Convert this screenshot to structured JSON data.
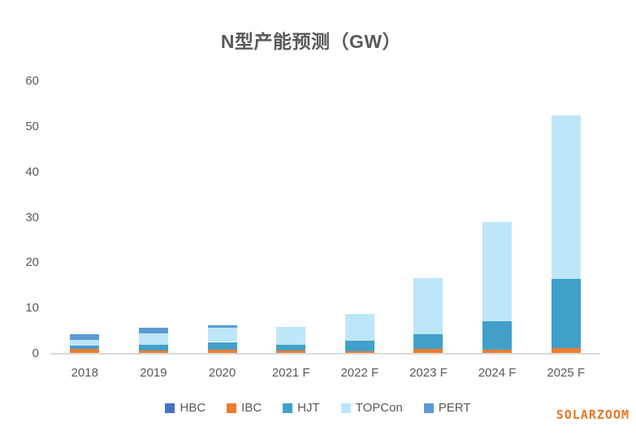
{
  "chart_data": {
    "type": "bar",
    "stacked": true,
    "title": "N型产能预测（GW）",
    "xlabel": "",
    "ylabel": "",
    "ylim": [
      0,
      60
    ],
    "yticks": [
      0,
      10,
      20,
      30,
      40,
      50,
      60
    ],
    "grid": false,
    "legend_position": "bottom",
    "categories": [
      "2018",
      "2019",
      "2020",
      "2021 F",
      "2022 F",
      "2023 F",
      "2024 F",
      "2025 F"
    ],
    "series": [
      {
        "name": "HBC",
        "color": "#4472C4",
        "values": [
          0,
          0,
          0,
          0,
          0,
          0,
          0,
          0
        ]
      },
      {
        "name": "IBC",
        "color": "#ED7D31",
        "values": [
          1.0,
          0.8,
          0.9,
          0.7,
          0.5,
          1.0,
          0.9,
          1.2
        ]
      },
      {
        "name": "HJT",
        "color": "#41A0C9",
        "values": [
          0.8,
          1.2,
          1.7,
          1.3,
          2.3,
          3.3,
          6.2,
          15.2
        ]
      },
      {
        "name": "TOPCon",
        "color": "#BDE7F8",
        "values": [
          1.3,
          2.5,
          3.1,
          3.9,
          6.0,
          12.3,
          22.0,
          36.1
        ]
      },
      {
        "name": "PERT",
        "color": "#5B9BD5",
        "values": [
          1.2,
          1.3,
          0.5,
          0,
          0,
          0,
          0,
          0
        ]
      }
    ],
    "totals": [
      4.3,
      5.8,
      6.2,
      5.9,
      8.8,
      16.6,
      29.1,
      52.5
    ]
  },
  "watermark": {
    "text": "SOLARZOOM",
    "color": "#E87722"
  },
  "axis": {
    "line_color": "#D9D9D9",
    "label_color": "#595959"
  }
}
